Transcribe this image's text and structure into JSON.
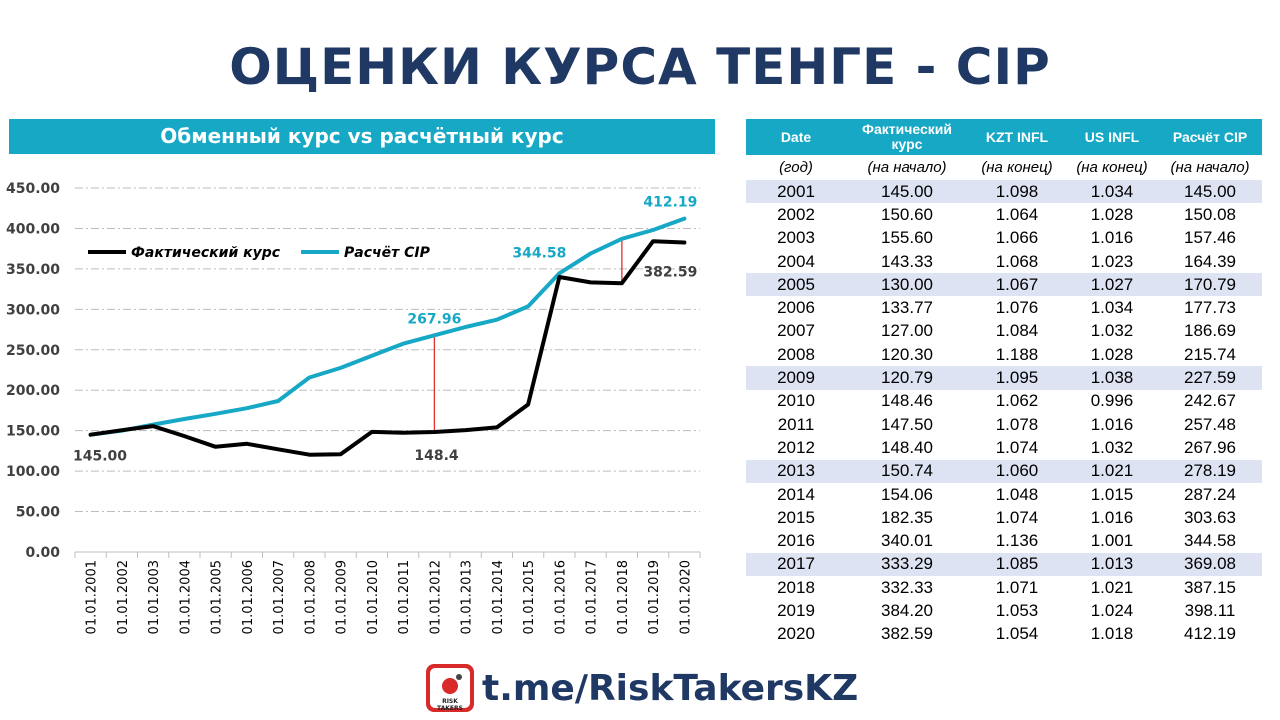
{
  "title": "ОЦЕНКИ КУРСА ТЕНГЕ -  CIP",
  "chart_header": "Обменный курс vs расчётный курс",
  "chart_data": {
    "type": "line",
    "categories": [
      "01.01.2001",
      "01.01.2002",
      "01.01.2003",
      "01.01.2004",
      "01.01.2005",
      "01.01.2006",
      "01.01.2007",
      "01.01.2008",
      "01.01.2009",
      "01.01.2010",
      "01.01.2011",
      "01.01.2012",
      "01.01.2013",
      "01.01.2014",
      "01.01.2015",
      "01.01.2016",
      "01.01.2017",
      "01.01.2018",
      "01.01.2019",
      "01.01.2020"
    ],
    "series": [
      {
        "name": "Фактический курс",
        "color": "#000000",
        "values": [
          145.0,
          150.6,
          155.6,
          143.33,
          130.0,
          133.77,
          127.0,
          120.3,
          120.79,
          148.46,
          147.5,
          148.4,
          150.74,
          154.06,
          182.35,
          340.01,
          333.29,
          332.33,
          384.2,
          382.59
        ]
      },
      {
        "name": "Расчёт CIP",
        "color": "#17a8c5",
        "values": [
          145.0,
          150.08,
          157.46,
          164.39,
          170.79,
          177.73,
          186.69,
          215.74,
          227.59,
          242.67,
          257.48,
          267.96,
          278.19,
          287.24,
          303.63,
          344.58,
          369.08,
          387.15,
          398.11,
          412.19
        ]
      }
    ],
    "ylim": [
      0,
      450
    ],
    "yticks": [
      "0.00",
      "50.00",
      "100.00",
      "150.00",
      "200.00",
      "250.00",
      "300.00",
      "350.00",
      "400.00",
      "450.00"
    ],
    "grid": true,
    "legend": "top-left",
    "annotations": [
      {
        "text": "145.00",
        "series": 0,
        "index": 0
      },
      {
        "text": "148.4",
        "series": 0,
        "index": 11
      },
      {
        "text": "267.96",
        "series": 1,
        "index": 11
      },
      {
        "text": "344.58",
        "series": 1,
        "index": 15
      },
      {
        "text": "412.19",
        "series": 1,
        "index": 19
      },
      {
        "text": "382.59",
        "series": 0,
        "index": 19
      }
    ],
    "gap_markers": [
      11,
      17
    ]
  },
  "table": {
    "headers": [
      "Date",
      "Фактический курс",
      "KZT INFL",
      "US INFL",
      "Расчёт CIP"
    ],
    "units": [
      "(год)",
      "(на начало)",
      "(на конец)",
      "(на конец)",
      "(на начало)"
    ],
    "highlight_years": [
      "2001",
      "2005",
      "2009",
      "2013",
      "2017"
    ],
    "rows": [
      [
        "2001",
        "145.00",
        "1.098",
        "1.034",
        "145.00"
      ],
      [
        "2002",
        "150.60",
        "1.064",
        "1.028",
        "150.08"
      ],
      [
        "2003",
        "155.60",
        "1.066",
        "1.016",
        "157.46"
      ],
      [
        "2004",
        "143.33",
        "1.068",
        "1.023",
        "164.39"
      ],
      [
        "2005",
        "130.00",
        "1.067",
        "1.027",
        "170.79"
      ],
      [
        "2006",
        "133.77",
        "1.076",
        "1.034",
        "177.73"
      ],
      [
        "2007",
        "127.00",
        "1.084",
        "1.032",
        "186.69"
      ],
      [
        "2008",
        "120.30",
        "1.188",
        "1.028",
        "215.74"
      ],
      [
        "2009",
        "120.79",
        "1.095",
        "1.038",
        "227.59"
      ],
      [
        "2010",
        "148.46",
        "1.062",
        "0.996",
        "242.67"
      ],
      [
        "2011",
        "147.50",
        "1.078",
        "1.016",
        "257.48"
      ],
      [
        "2012",
        "148.40",
        "1.074",
        "1.032",
        "267.96"
      ],
      [
        "2013",
        "150.74",
        "1.060",
        "1.021",
        "278.19"
      ],
      [
        "2014",
        "154.06",
        "1.048",
        "1.015",
        "287.24"
      ],
      [
        "2015",
        "182.35",
        "1.074",
        "1.016",
        "303.63"
      ],
      [
        "2016",
        "340.01",
        "1.136",
        "1.001",
        "344.58"
      ],
      [
        "2017",
        "333.29",
        "1.085",
        "1.013",
        "369.08"
      ],
      [
        "2018",
        "332.33",
        "1.071",
        "1.021",
        "387.15"
      ],
      [
        "2019",
        "384.20",
        "1.053",
        "1.024",
        "398.11"
      ],
      [
        "2020",
        "382.59",
        "1.054",
        "1.018",
        "412.19"
      ]
    ]
  },
  "footer": {
    "link": "t.me/RiskTakersKZ",
    "logo_text": "RISK TAKERS",
    "logo_icon": "bomb-icon"
  }
}
